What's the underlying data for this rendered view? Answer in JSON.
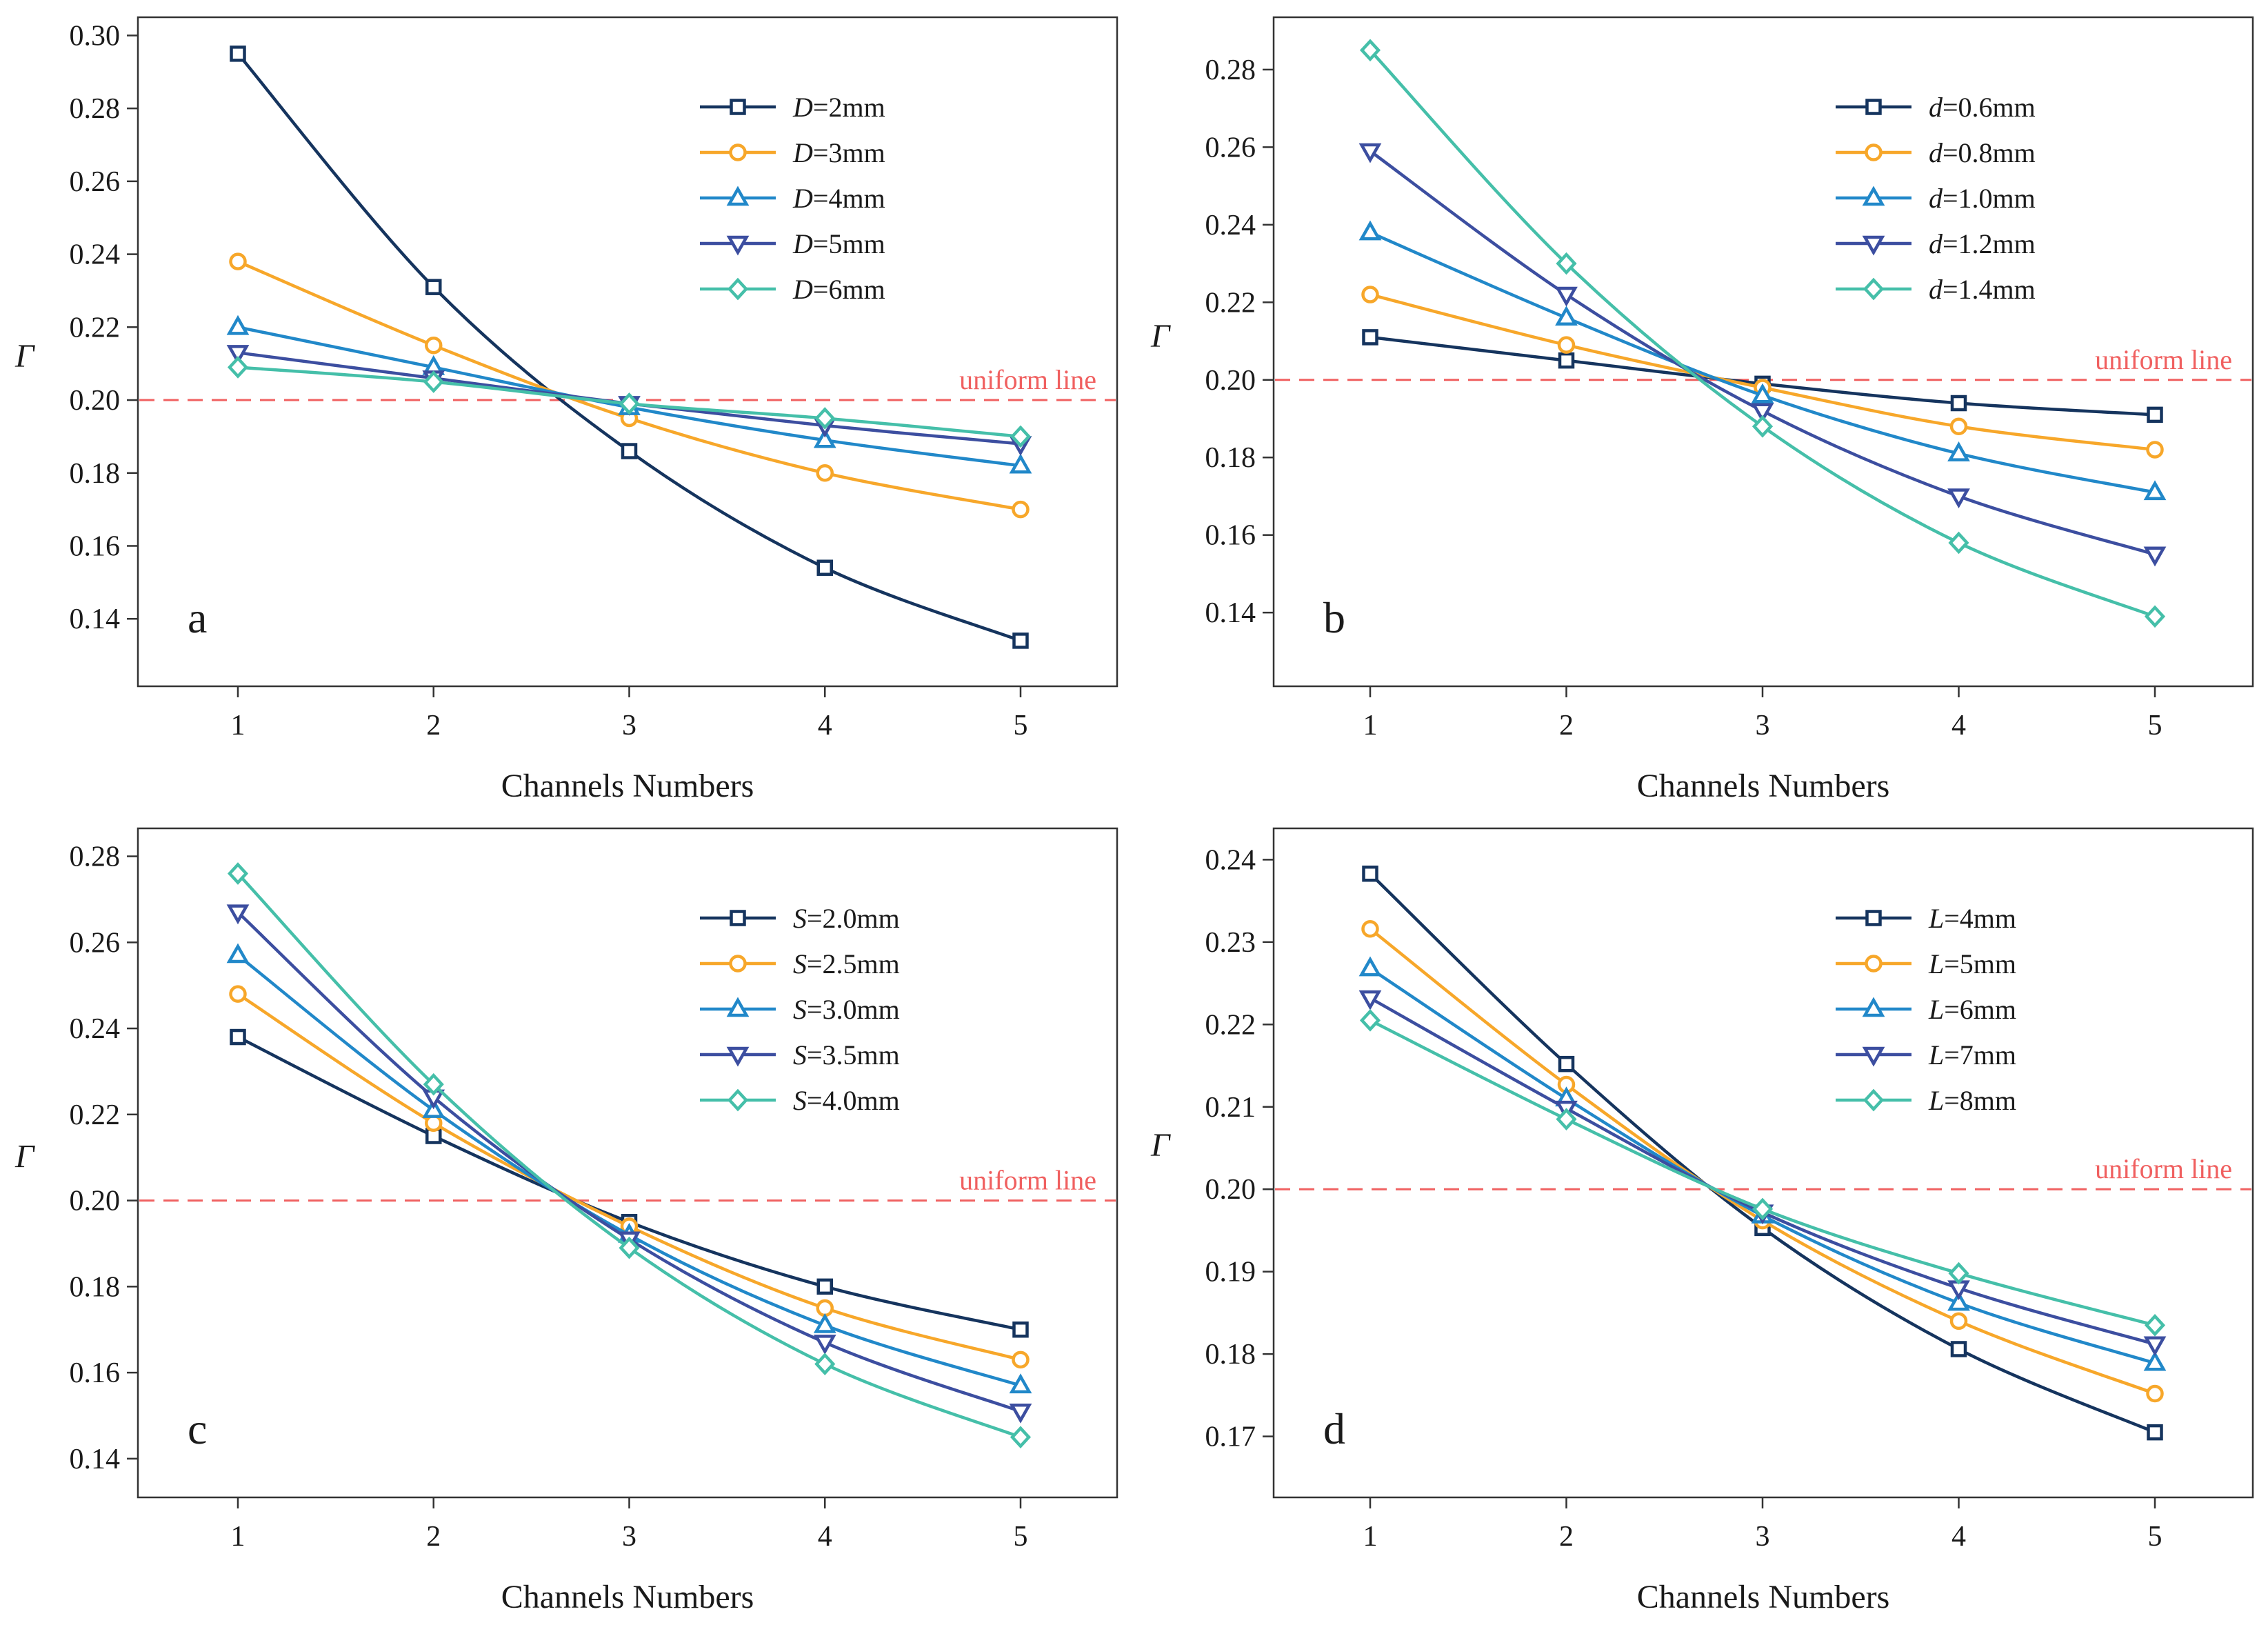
{
  "chart_data": [
    {
      "type": "line",
      "panel": "a",
      "xlabel": "Channels Numbers",
      "ylabel": "Γ",
      "x": [
        1,
        2,
        3,
        4,
        5
      ],
      "xlim": [
        0.5,
        5.5
      ],
      "ylim": [
        0.1215,
        0.305
      ],
      "yticks": [
        0.14,
        0.16,
        0.18,
        0.2,
        0.22,
        0.24,
        0.26,
        0.28,
        0.3
      ],
      "ytick_labels": [
        "0.14",
        "0.16",
        "0.18",
        "0.20",
        "0.22",
        "0.24",
        "0.26",
        "0.28",
        "0.30"
      ],
      "xtick_labels": [
        "1",
        "2",
        "3",
        "4",
        "5"
      ],
      "reference_line": {
        "value": 0.2,
        "label": "uniform line",
        "color": "#f06060"
      },
      "legend_position": "top-right",
      "series": [
        {
          "var": "D",
          "rest": "=2mm",
          "marker": "square",
          "color": "#15345e",
          "values": [
            0.295,
            0.231,
            0.186,
            0.154,
            0.134
          ]
        },
        {
          "var": "D",
          "rest": "=3mm",
          "marker": "circle",
          "color": "#f7a72a",
          "values": [
            0.238,
            0.215,
            0.195,
            0.18,
            0.17
          ]
        },
        {
          "var": "D",
          "rest": "=4mm",
          "marker": "triangle-up",
          "color": "#2188c9",
          "values": [
            0.22,
            0.209,
            0.198,
            0.189,
            0.182
          ]
        },
        {
          "var": "D",
          "rest": "=5mm",
          "marker": "triangle-down",
          "color": "#3c4ea0",
          "values": [
            0.213,
            0.206,
            0.199,
            0.193,
            0.188
          ]
        },
        {
          "var": "D",
          "rest": "=6mm",
          "marker": "diamond",
          "color": "#45bfa9",
          "values": [
            0.209,
            0.205,
            0.199,
            0.195,
            0.19
          ]
        }
      ]
    },
    {
      "type": "line",
      "panel": "b",
      "xlabel": "Channels Numbers",
      "ylabel": "Γ",
      "x": [
        1,
        2,
        3,
        4,
        5
      ],
      "xlim": [
        0.5,
        5.5
      ],
      "ylim": [
        0.121,
        0.2935
      ],
      "yticks": [
        0.14,
        0.16,
        0.18,
        0.2,
        0.22,
        0.24,
        0.26,
        0.28
      ],
      "ytick_labels": [
        "0.14",
        "0.16",
        "0.18",
        "0.20",
        "0.22",
        "0.24",
        "0.26",
        "0.28"
      ],
      "xtick_labels": [
        "1",
        "2",
        "3",
        "4",
        "5"
      ],
      "reference_line": {
        "value": 0.2,
        "label": "uniform line",
        "color": "#f06060"
      },
      "legend_position": "top-right",
      "series": [
        {
          "var": "d",
          "rest": "=0.6mm",
          "marker": "square",
          "color": "#15345e",
          "values": [
            0.211,
            0.205,
            0.199,
            0.194,
            0.191
          ]
        },
        {
          "var": "d",
          "rest": "=0.8mm",
          "marker": "circle",
          "color": "#f7a72a",
          "values": [
            0.222,
            0.209,
            0.198,
            0.188,
            0.182
          ]
        },
        {
          "var": "d",
          "rest": "=1.0mm",
          "marker": "triangle-up",
          "color": "#2188c9",
          "values": [
            0.238,
            0.216,
            0.196,
            0.181,
            0.171
          ]
        },
        {
          "var": "d",
          "rest": "=1.2mm",
          "marker": "triangle-down",
          "color": "#3c4ea0",
          "values": [
            0.259,
            0.222,
            0.192,
            0.17,
            0.155
          ]
        },
        {
          "var": "d",
          "rest": "=1.4mm",
          "marker": "diamond",
          "color": "#45bfa9",
          "values": [
            0.285,
            0.23,
            0.188,
            0.158,
            0.139
          ]
        }
      ]
    },
    {
      "type": "line",
      "panel": "c",
      "xlabel": "Channels Numbers",
      "ylabel": "Γ",
      "x": [
        1,
        2,
        3,
        4,
        5
      ],
      "xlim": [
        0.5,
        5.5
      ],
      "ylim": [
        0.131,
        0.2865
      ],
      "yticks": [
        0.14,
        0.16,
        0.18,
        0.2,
        0.22,
        0.24,
        0.26,
        0.28
      ],
      "ytick_labels": [
        "0.14",
        "0.16",
        "0.18",
        "0.20",
        "0.22",
        "0.24",
        "0.26",
        "0.28"
      ],
      "xtick_labels": [
        "1",
        "2",
        "3",
        "4",
        "5"
      ],
      "reference_line": {
        "value": 0.2,
        "label": "uniform line",
        "color": "#f06060"
      },
      "legend_position": "top-right",
      "series": [
        {
          "var": "S",
          "rest": "=2.0mm",
          "marker": "square",
          "color": "#15345e",
          "values": [
            0.238,
            0.215,
            0.195,
            0.18,
            0.17
          ]
        },
        {
          "var": "S",
          "rest": "=2.5mm",
          "marker": "circle",
          "color": "#f7a72a",
          "values": [
            0.248,
            0.218,
            0.194,
            0.175,
            0.163
          ]
        },
        {
          "var": "S",
          "rest": "=3.0mm",
          "marker": "triangle-up",
          "color": "#2188c9",
          "values": [
            0.257,
            0.221,
            0.192,
            0.171,
            0.157
          ]
        },
        {
          "var": "S",
          "rest": "=3.5mm",
          "marker": "triangle-down",
          "color": "#3c4ea0",
          "values": [
            0.267,
            0.224,
            0.191,
            0.167,
            0.151
          ]
        },
        {
          "var": "S",
          "rest": "=4.0mm",
          "marker": "diamond",
          "color": "#45bfa9",
          "values": [
            0.276,
            0.227,
            0.189,
            0.162,
            0.145
          ]
        }
      ]
    },
    {
      "type": "line",
      "panel": "d",
      "xlabel": "Channels Numbers",
      "ylabel": "Γ",
      "x": [
        1,
        2,
        3,
        4,
        5
      ],
      "xlim": [
        0.5,
        5.5
      ],
      "ylim": [
        0.1626,
        0.2438
      ],
      "yticks": [
        0.17,
        0.18,
        0.19,
        0.2,
        0.21,
        0.22,
        0.23,
        0.24
      ],
      "ytick_labels": [
        "0.17",
        "0.18",
        "0.19",
        "0.20",
        "0.21",
        "0.22",
        "0.23",
        "0.24"
      ],
      "xtick_labels": [
        "1",
        "2",
        "3",
        "4",
        "5"
      ],
      "reference_line": {
        "value": 0.2,
        "label": "uniform line",
        "color": "#f06060"
      },
      "legend_position": "top-right",
      "series": [
        {
          "var": "L",
          "rest": "=4mm",
          "marker": "square",
          "color": "#15345e",
          "values": [
            0.2383,
            0.2152,
            0.1953,
            0.1806,
            0.1705
          ]
        },
        {
          "var": "L",
          "rest": "=5mm",
          "marker": "circle",
          "color": "#f7a72a",
          "values": [
            0.2316,
            0.2127,
            0.1962,
            0.184,
            0.1752
          ]
        },
        {
          "var": "L",
          "rest": "=6mm",
          "marker": "triangle-up",
          "color": "#2188c9",
          "values": [
            0.2268,
            0.211,
            0.1968,
            0.1862,
            0.1789
          ]
        },
        {
          "var": "L",
          "rest": "=7mm",
          "marker": "triangle-down",
          "color": "#3c4ea0",
          "values": [
            0.2232,
            0.2098,
            0.1972,
            0.188,
            0.1812
          ]
        },
        {
          "var": "L",
          "rest": "=8mm",
          "marker": "diamond",
          "color": "#45bfa9",
          "values": [
            0.2205,
            0.2085,
            0.1976,
            0.1898,
            0.1835
          ]
        }
      ]
    }
  ]
}
